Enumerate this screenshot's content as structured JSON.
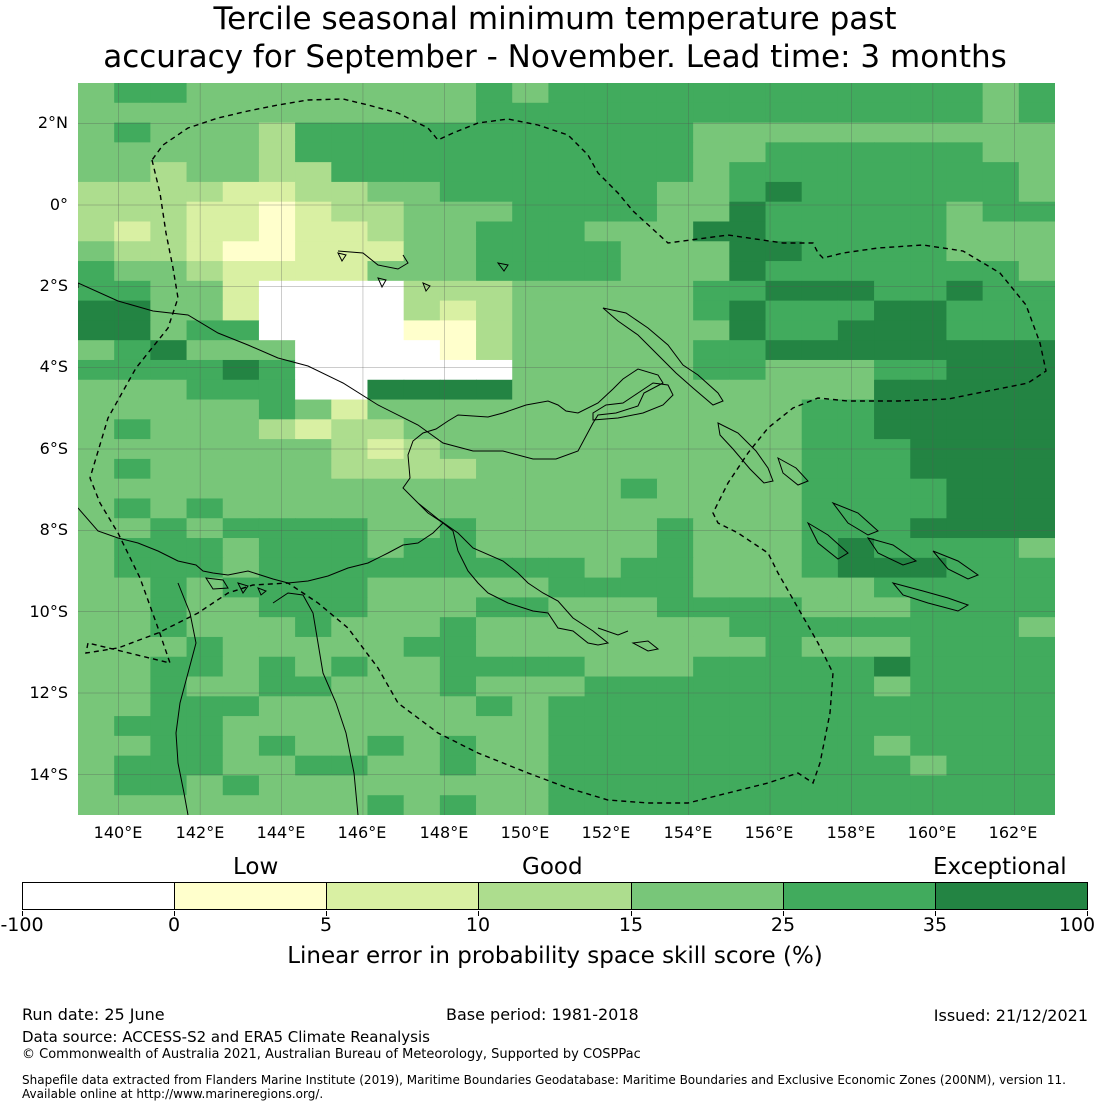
{
  "title_line1": "Tercile seasonal minimum temperature past",
  "title_line2": "accuracy for September - November. Lead time: 3 months",
  "lat_labels": [
    "2°N",
    "0°",
    "2°S",
    "4°S",
    "6°S",
    "8°S",
    "10°S",
    "12°S",
    "14°S"
  ],
  "lon_labels": [
    "140°E",
    "142°E",
    "144°E",
    "146°E",
    "148°E",
    "150°E",
    "152°E",
    "154°E",
    "156°E",
    "158°E",
    "160°E",
    "162°E"
  ],
  "category_labels": {
    "low": "Low",
    "good": "Good",
    "exceptional": "Exceptional"
  },
  "colorbar": {
    "colors": [
      "#ffffff",
      "#ffffcc",
      "#d9f0a3",
      "#addd8e",
      "#78c679",
      "#41ab5d",
      "#238443"
    ],
    "ticks": [
      "-100",
      "0",
      "5",
      "10",
      "15",
      "25",
      "35",
      "100"
    ],
    "title": "Linear error in probability space skill score (%)"
  },
  "footer": {
    "run_date": "Run date: 25 June",
    "base_period": "Base period: 1981-2018",
    "issued": "Issued: 21/12/2021",
    "data_source": "Data source: ACCESS-S2 and ERA5 Climate Reanalysis",
    "copyright": "© Commonwealth of Australia 2021, Australian Bureau of Meteorology, Supported by COSPPac",
    "shapefile_line1": "Shapefile data extracted from Flanders Marine Institute (2019), Maritime Boundaries Geodatabase: Maritime Boundaries and Exclusive Economic Zones (200NM), version 11.",
    "shapefile_line2": "Available online at http://www.marineregions.org/."
  },
  "map_data": {
    "extent": {
      "lon_min": 139.0,
      "lon_max": 163.0,
      "lat_min": -15.0,
      "lat_max": 3.0
    },
    "grid_step_deg": 0.8,
    "grid_colors": [
      "#ffffff",
      "#ffffcc",
      "#d9f0a3",
      "#addd8e",
      "#78c679",
      "#41ab5d",
      "#238443"
    ],
    "grid": [
      "455444444445455555555555545",
      "444444444445555555555555545",
      "454443555555555554444444444",
      "444443555555555554455555544",
      "443443355555555554555555554",
      "333322334455555544565555554",
      "333221233444555544655555455",
      "323221223445554446655555444",
      "433211222445555444665555444",
      "544322224445555444655555554",
      "554420000333444445566655655",
      "664420000323444445655566555",
      "664550000113444444655666555",
      "456444000013444445566666666",
      "555565000000444445544455666",
      "444555006666444444444466666",
      "444445424444444444445566666",
      "454443233444444444445566666",
      "444444432344444444445556666",
      "454444433334444444445556666",
      "444444444444444544445555666",
      "454544444444444444445555666",
      "445455554454444454445556666",
      "455545554554444454445655554",
      "455545555555554554445666555",
      "445455554444455554444455555",
      "445445554445544455554445555",
      "445444544454444444555555554",
      "444544444554444444454445555",
      "445545454455554445555565555",
      "445445544454445555555545555",
      "445554444445455555555555555",
      "455544444444455555555555555",
      "445545445454455555555545555",
      "455544554454455555555554555",
      "455454444444455555555555555",
      "444444445454455555555555555"
    ],
    "land_shapes": [
      "new-guinea-island",
      "new-britain",
      "new-ireland",
      "bougainville",
      "solomon-islands",
      "cape-york-peninsula",
      "louisiade-archipelago"
    ],
    "boundary_style": "dashed",
    "coastline_color": "#000000",
    "gridline_color": "#555555"
  }
}
